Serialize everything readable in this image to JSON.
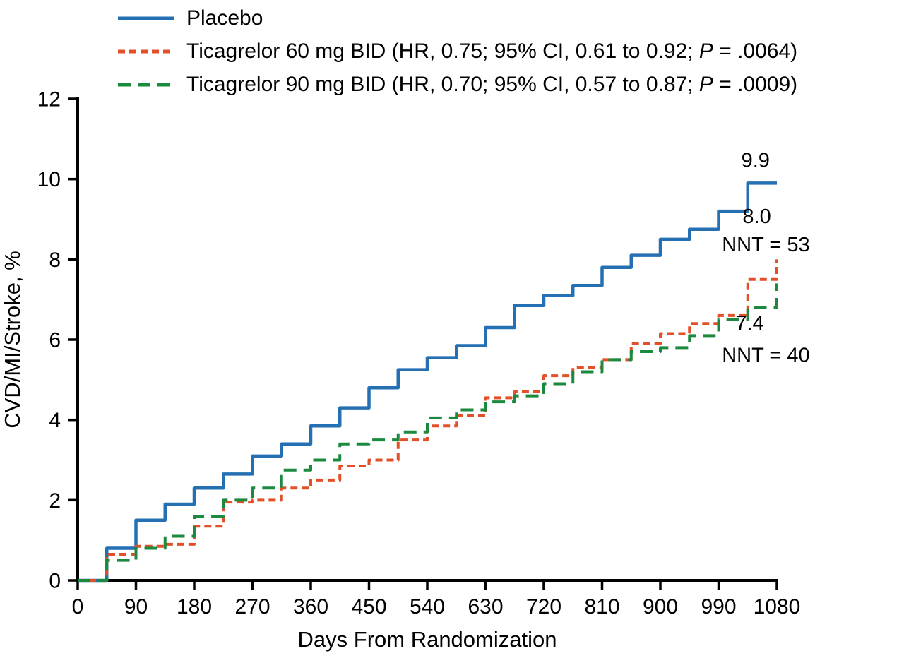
{
  "figure": {
    "background": "#ffffff"
  },
  "legend": {
    "items": [
      {
        "label_before": "Placebo",
        "label_italic": "",
        "label_after": "",
        "color": "#2470b3",
        "dash": "none"
      },
      {
        "label_before": "Ticagrelor 60 mg BID (HR, 0.75; 95% CI, 0.61 to 0.92; ",
        "label_italic": "P",
        "label_after": " = .0064)",
        "color": "#e2502a",
        "dash": "10 6"
      },
      {
        "label_before": "Ticagrelor 90 mg BID (HR, 0.70; 95% CI, 0.57 to 0.87; ",
        "label_italic": "P",
        "label_after": " = .0009)",
        "color": "#1b8a3e",
        "dash": "18 10"
      }
    ]
  },
  "chart_data": {
    "type": "line",
    "step": true,
    "grid": false,
    "title": "",
    "xlabel": "Days From Randomization",
    "ylabel": "CVD/MI/Stroke, %",
    "xlim": [
      0,
      1080
    ],
    "ylim": [
      0,
      12
    ],
    "x_ticks": [
      0,
      90,
      180,
      270,
      360,
      450,
      540,
      630,
      720,
      810,
      900,
      990,
      1080
    ],
    "y_ticks": [
      0,
      2,
      4,
      6,
      8,
      10,
      12
    ],
    "x": [
      0,
      45,
      90,
      135,
      180,
      225,
      270,
      315,
      360,
      405,
      450,
      495,
      540,
      585,
      630,
      675,
      720,
      765,
      810,
      855,
      900,
      945,
      990,
      1035,
      1080
    ],
    "series": [
      {
        "id": "placebo",
        "name": "Placebo",
        "color": "#2470b3",
        "dash": null,
        "width": 4.5,
        "values": [
          0,
          0.8,
          1.5,
          1.9,
          2.3,
          2.65,
          3.1,
          3.4,
          3.85,
          4.3,
          4.8,
          5.25,
          5.55,
          5.85,
          6.3,
          6.85,
          7.1,
          7.35,
          7.8,
          8.1,
          8.5,
          8.75,
          9.2,
          9.9,
          9.9
        ]
      },
      {
        "id": "ticagrelor-60",
        "name": "Ticagrelor 60 mg BID",
        "color": "#e2502a",
        "dash": "10 6",
        "width": 4,
        "values": [
          0,
          0.65,
          0.85,
          0.9,
          1.35,
          1.95,
          2.0,
          2.3,
          2.5,
          2.85,
          3.0,
          3.5,
          3.85,
          4.1,
          4.55,
          4.7,
          5.1,
          5.3,
          5.5,
          5.9,
          6.15,
          6.4,
          6.6,
          7.5,
          8.0
        ]
      },
      {
        "id": "ticagrelor-90",
        "name": "Ticagrelor 90 mg BID",
        "color": "#1b8a3e",
        "dash": "18 10",
        "width": 4,
        "values": [
          0,
          0.5,
          0.8,
          1.1,
          1.6,
          2.0,
          2.3,
          2.75,
          3.0,
          3.4,
          3.5,
          3.7,
          4.05,
          4.25,
          4.45,
          4.6,
          4.9,
          5.2,
          5.5,
          5.7,
          5.8,
          6.1,
          6.5,
          6.8,
          7.4
        ]
      }
    ],
    "annotations": [
      {
        "text": "9.9",
        "x": 1047,
        "y": 10.3
      },
      {
        "text": "8.0",
        "x": 1049,
        "y": 8.9
      },
      {
        "text": "NNT = 53",
        "x": 1063,
        "y": 8.2
      },
      {
        "text": "7.4",
        "x": 1038,
        "y": 6.25
      },
      {
        "text": "NNT = 40",
        "x": 1063,
        "y": 5.45
      }
    ]
  }
}
